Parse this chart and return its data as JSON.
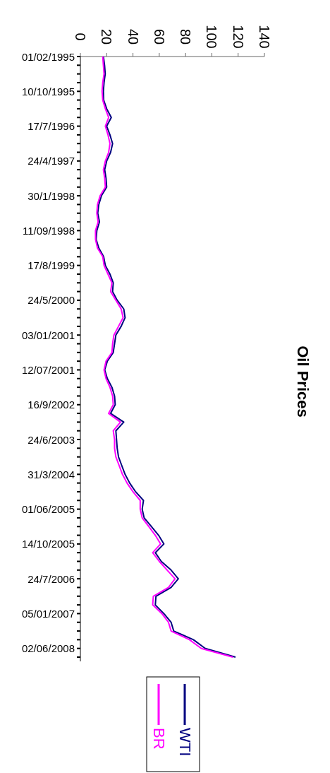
{
  "chart_data": {
    "type": "line",
    "title": "Oil Prices",
    "categories": [
      "01/02/1995",
      null,
      null,
      null,
      "10/10/1995",
      null,
      null,
      null,
      "17/7/1996",
      null,
      null,
      null,
      "24/4/1997",
      null,
      null,
      null,
      "30/1/1998",
      null,
      null,
      null,
      "11/09/1998",
      null,
      null,
      null,
      "17/8/1999",
      null,
      null,
      null,
      "24/5/2000",
      null,
      null,
      null,
      "03/01/2001",
      null,
      null,
      null,
      "12/07/2001",
      null,
      null,
      null,
      "16/9/2002",
      null,
      null,
      null,
      "24/6/2003",
      null,
      null,
      null,
      "31/3/2004",
      null,
      null,
      null,
      "01/06/2005",
      null,
      null,
      null,
      "14/10/2005",
      null,
      null,
      null,
      "24/7/2006",
      null,
      null,
      null,
      "05/01/2007",
      null,
      null,
      null,
      "02/06/2008",
      null
    ],
    "series": [
      {
        "name": "WTI",
        "color": "#000080",
        "values": [
          17.5,
          18.4,
          18.9,
          18,
          17.5,
          17.7,
          20,
          23.5,
          20,
          22.5,
          24.5,
          23,
          20,
          18.5,
          19.5,
          20,
          16,
          14,
          13.2,
          14.5,
          12.5,
          12,
          14,
          17.7,
          19,
          22.5,
          25,
          24.5,
          28,
          33,
          34,
          31,
          27,
          26,
          25,
          20.5,
          18.5,
          20.5,
          24,
          26,
          26.5,
          23,
          33,
          27,
          27.5,
          28,
          29,
          31.5,
          34,
          37.5,
          42,
          48,
          47,
          48.5,
          54,
          59.5,
          63.5,
          57,
          61.5,
          69,
          74.5,
          69,
          57.5,
          57,
          63.5,
          69,
          71,
          86,
          95,
          118
        ]
      },
      {
        "name": "BR",
        "color": "#ff00ff",
        "values": [
          17,
          17.5,
          18,
          17,
          16.5,
          17,
          19,
          21.5,
          19,
          21,
          22.5,
          21.5,
          19,
          17.5,
          18.5,
          19,
          15,
          13,
          12.5,
          13.5,
          11.5,
          11.5,
          13,
          17,
          18,
          21,
          24,
          23,
          27,
          31,
          32.5,
          29,
          25.5,
          24.5,
          24,
          19.5,
          18,
          19.5,
          22.5,
          24.5,
          25,
          21.5,
          30.5,
          25,
          26,
          26,
          27,
          29.5,
          32,
          35.5,
          40,
          45.5,
          45.5,
          47,
          52,
          57,
          61,
          55,
          60,
          66,
          72,
          67,
          55.5,
          55,
          62,
          67,
          69,
          83,
          92,
          116
        ]
      }
    ],
    "orientation": "horizontal",
    "xlim": [
      0,
      140
    ],
    "xticks": [
      0,
      20,
      40,
      60,
      80,
      100,
      120,
      140
    ],
    "legend": "bottom",
    "grid": false
  }
}
